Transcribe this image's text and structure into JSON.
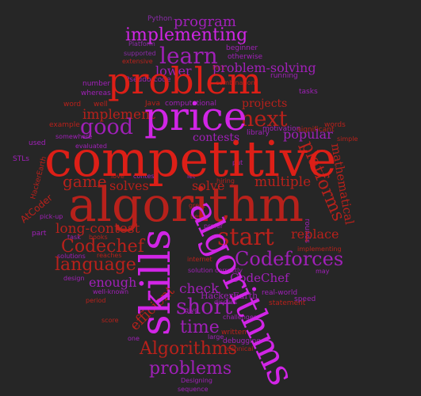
{
  "colors": {
    "background": "#262626",
    "red": "#dd1f17",
    "dark_red": "#b8211b",
    "magenta": "#d125e6",
    "purple": "#a020b8",
    "dark_purple": "#6f1c86",
    "violet": "#8a2aa8"
  },
  "words": {
    "w_competitive": "competitive",
    "w_algorithm": "algorithm",
    "w_problem": "problem",
    "w_price": "price",
    "w_skills": "skills",
    "w_algorithms": "algorithms",
    "w_implementing": "implementing",
    "w_learn": "learn",
    "w_good": "good",
    "w_next": "next",
    "w_start": "start",
    "w_codeforces": "Codeforces",
    "w_codechef": "Codechef",
    "w_language": "language",
    "w_game": "game",
    "w_platforms": "platforms",
    "w_mathematical": "mathematical",
    "w_multiple": "multiple",
    "w_solve": "solve",
    "w_solves": "solves",
    "w_problems": "problems",
    "w_algorithms_cap": "Algorithms",
    "w_time": "time",
    "w_short": "short",
    "w_check": "check",
    "w_enough": "enough",
    "w_efficient": "efficient",
    "w_long_contest": "long-contest",
    "w_replace": "replace",
    "w_program": "program",
    "w_problem_solving": "problem-solving",
    "w_lower": "lower",
    "w_implement": "implement",
    "w_contests": "contests",
    "w_popular": "popular",
    "w_projects": "projects",
    "w_codechef2": "CodeChef",
    "w_atcoder": "AtCoder",
    "w_hackerearth": "HackerEarth",
    "w_python": "Python",
    "w_beginner": "beginner",
    "w_otherwise": "otherwise",
    "w_platform": "Platform",
    "w_supported": "supported",
    "w_extensive": "extensive",
    "w_pick": "Pick",
    "w_number": "number",
    "w_whereas": "whereas",
    "w_word": "word",
    "w_well": "well",
    "w_example": "example",
    "w_somewhere": "somewhere",
    "w_evaluated": "evaluated",
    "w_java": "Java",
    "w_computational": "computational",
    "w_combination": "combination",
    "w_tasks": "tasks",
    "w_running": "running",
    "w_motivation": "motivation",
    "w_significant": "significant",
    "w_rounds": "rounds",
    "w_library": "library",
    "w_words": "words",
    "w_simple": "simple",
    "w_stls": "STLs",
    "w_used": "used",
    "w_part": "part",
    "w_pseudo_code": "Pseudo-code",
    "w_hiring": "hiring",
    "w_great": "great",
    "w_best": "best",
    "w_prefer": "prefer",
    "w_pick_up": "pick-up",
    "w_books": "books",
    "w_task": "task",
    "w_reaches": "reaches",
    "w_solutions": "solutions",
    "w_internet": "internet",
    "w_solution": "solution",
    "w_correctly": "correctly",
    "w_real_world": "real-world",
    "w_statement": "statement",
    "w_speed": "speed",
    "w_may": "may",
    "w_design": "design",
    "w_well_known": "well-known",
    "w_period": "period",
    "w_discuss": "discuss",
    "w_challenges": "challenges",
    "w_written": "written",
    "w_debugging": "debugging",
    "w_technical": "technical",
    "w_large": "large",
    "w_one": "one",
    "w_designing": "Designing",
    "w_sequence": "sequence",
    "w_implementing2": "implementing",
    "w_give": "give",
    "w_score": "score",
    "w_put": "put",
    "w_let": "let",
    "w_love": "love",
    "w_contest": "contest"
  }
}
